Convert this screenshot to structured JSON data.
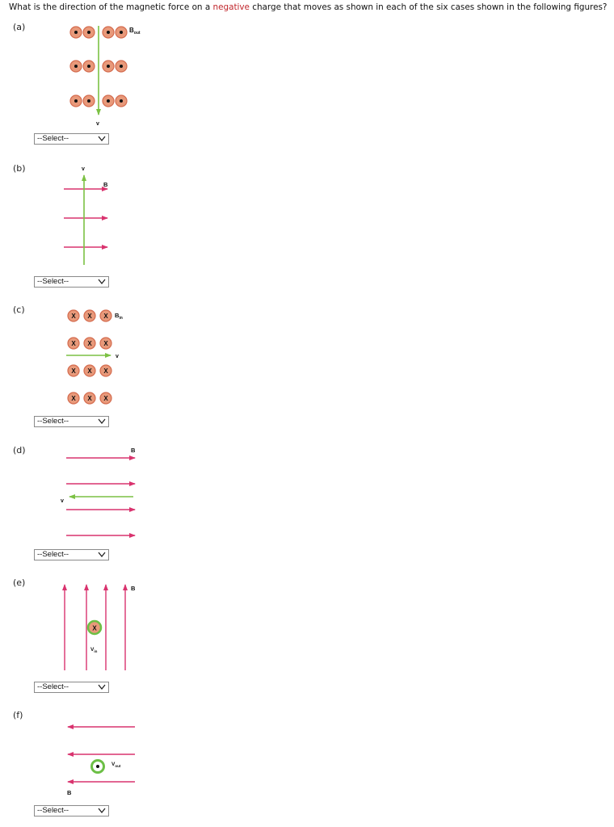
{
  "question": {
    "prefix": "What is the direction of the magnetic force on a ",
    "highlight": "negative",
    "suffix": " charge that moves as shown in each of the six cases shown in the following figures?"
  },
  "colors": {
    "field_line": "#d9336e",
    "velocity": "#7cc144",
    "field_dot_fill": "#e8997a",
    "field_dot_ring": "#d46b4e",
    "charge_ring": "#6cbf45",
    "highlight_text": "#c0262c"
  },
  "parts": [
    {
      "label": "(a)",
      "field_label": "B",
      "field_sub": "out",
      "velocity_label": "v",
      "select": "--Select--"
    },
    {
      "label": "(b)",
      "field_label": "B",
      "velocity_label": "v",
      "select": "--Select--"
    },
    {
      "label": "(c)",
      "field_label": "B",
      "field_sub": "in",
      "velocity_label": "v",
      "cross_symbol": "X",
      "select": "--Select--"
    },
    {
      "label": "(d)",
      "field_label": "B",
      "velocity_label": "v",
      "select": "--Select--"
    },
    {
      "label": "(e)",
      "field_label": "B",
      "velocity_label": "V",
      "velocity_sub": "in",
      "cross_symbol": "X",
      "select": "--Select--"
    },
    {
      "label": "(f)",
      "field_label": "B",
      "velocity_label": "V",
      "velocity_sub": "out",
      "select": "--Select--"
    }
  ]
}
